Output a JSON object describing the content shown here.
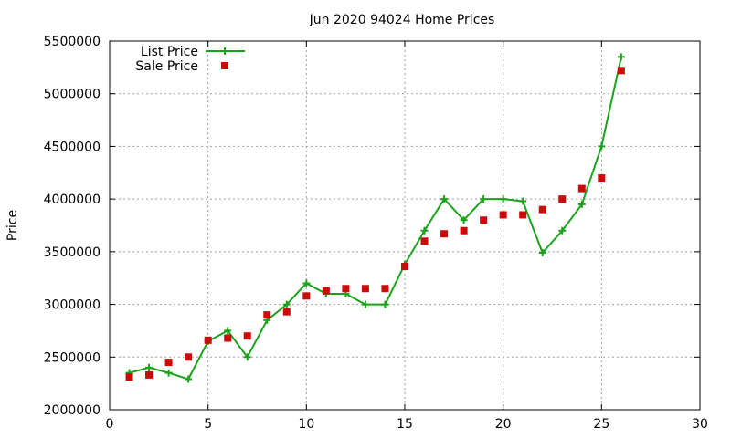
{
  "chart_data": {
    "type": "line",
    "title": "Jun 2020 94024 Home Prices",
    "xlabel": "",
    "ylabel": "Price",
    "xlim": [
      0,
      30
    ],
    "ylim": [
      2000000,
      5500000
    ],
    "xticks": [
      0,
      5,
      10,
      15,
      20,
      25,
      30
    ],
    "yticks": [
      2000000,
      2500000,
      3000000,
      3500000,
      4000000,
      4500000,
      5000000,
      5500000
    ],
    "grid": true,
    "legend_position": "top-left",
    "series": [
      {
        "name": "List Price",
        "style": "line+cross",
        "color": "#1aa31a",
        "x": [
          1,
          2,
          3,
          4,
          5,
          6,
          7,
          8,
          9,
          10,
          11,
          12,
          13,
          14,
          15,
          16,
          17,
          18,
          19,
          20,
          21,
          22,
          23,
          24,
          25,
          26
        ],
        "y": [
          2350000,
          2400000,
          2350000,
          2290000,
          2650000,
          2750000,
          2500000,
          2850000,
          3000000,
          3200000,
          3100000,
          3100000,
          3000000,
          3000000,
          3380000,
          3700000,
          4000000,
          3800000,
          4000000,
          4000000,
          3980000,
          3490000,
          3700000,
          3950000,
          4500000,
          5350000
        ]
      },
      {
        "name": "Sale Price",
        "style": "square",
        "color": "#cc0a0a",
        "x": [
          1,
          2,
          3,
          4,
          5,
          6,
          7,
          8,
          9,
          10,
          11,
          12,
          13,
          14,
          15,
          16,
          17,
          18,
          19,
          20,
          21,
          22,
          23,
          24,
          25,
          26
        ],
        "y": [
          2310000,
          2330000,
          2450000,
          2500000,
          2660000,
          2680000,
          2700000,
          2900000,
          2930000,
          3080000,
          3130000,
          3150000,
          3150000,
          3150000,
          3360000,
          3600000,
          3670000,
          3700000,
          3800000,
          3850000,
          3850000,
          3900000,
          4000000,
          4100000,
          4200000,
          5220000
        ]
      }
    ]
  }
}
